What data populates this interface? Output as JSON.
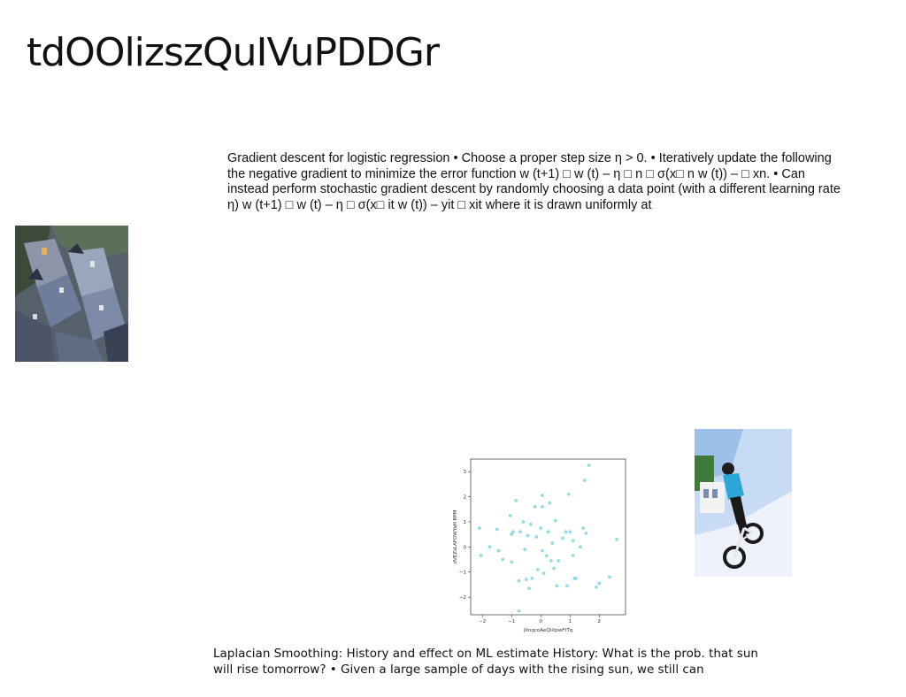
{
  "slide": {
    "title": "tdOOlizszQuIVuPDDGr",
    "body": "Gradient descent for logistic regression • Choose a proper step size η > 0. • Iteratively update the following the negative gradient to minimize the error function w (t+1) □ w (t) – η □ n □ σ(x□ n w (t)) – □ xn. • Can instead perform stochastic gradient descent by randomly choosing a data point (with a different learning rate η) w (t+1) □ w (t) – η □ σ(x□ it w (t)) – yit □ xit where it is drawn uniformly at",
    "footer": "Laplacian Smoothing: History and effect on ML estimate History: What is the prob. that sun will rise tomorrow? • Given a large sample of days with the rising sun, we still can"
  },
  "images": {
    "city": "city-photo",
    "bike": "bike-photo"
  },
  "chart_data": {
    "type": "scatter",
    "title": "",
    "xlabel": "jXnqcoAeQUipwFtTq",
    "ylabel": "dVEZsLAFOWYaH RPM",
    "xlim": [
      -2.4,
      2.9
    ],
    "ylim": [
      -2.7,
      3.5
    ],
    "xticks": [
      -2,
      -1,
      0,
      1,
      2
    ],
    "yticks": [
      -2,
      -1,
      0,
      1,
      2,
      3
    ],
    "grid": false,
    "color": "#7fd6e0",
    "points": [
      [
        -2.1,
        0.75
      ],
      [
        -2.05,
        -0.35
      ],
      [
        -1.75,
        0.0
      ],
      [
        -1.5,
        0.7
      ],
      [
        -1.45,
        -0.15
      ],
      [
        -1.3,
        -0.5
      ],
      [
        -1.05,
        1.25
      ],
      [
        -1.0,
        0.5
      ],
      [
        -1.0,
        -0.6
      ],
      [
        -0.95,
        0.6
      ],
      [
        -0.85,
        1.85
      ],
      [
        -0.75,
        -1.35
      ],
      [
        -0.75,
        -2.55
      ],
      [
        -0.7,
        0.6
      ],
      [
        -0.6,
        1.0
      ],
      [
        -0.55,
        -0.1
      ],
      [
        -0.5,
        -1.3
      ],
      [
        -0.45,
        0.45
      ],
      [
        -0.4,
        -1.65
      ],
      [
        -0.35,
        0.9
      ],
      [
        -0.3,
        -1.25
      ],
      [
        -0.2,
        1.6
      ],
      [
        -0.15,
        0.4
      ],
      [
        -0.1,
        -0.9
      ],
      [
        0.0,
        0.75
      ],
      [
        0.05,
        -0.15
      ],
      [
        0.05,
        1.6
      ],
      [
        0.05,
        2.05
      ],
      [
        0.1,
        -1.05
      ],
      [
        0.2,
        -0.35
      ],
      [
        0.25,
        0.6
      ],
      [
        0.3,
        1.75
      ],
      [
        0.35,
        -0.55
      ],
      [
        0.4,
        0.15
      ],
      [
        0.45,
        -0.85
      ],
      [
        0.5,
        1.05
      ],
      [
        0.55,
        -1.55
      ],
      [
        0.6,
        -0.55
      ],
      [
        0.75,
        0.35
      ],
      [
        0.85,
        0.6
      ],
      [
        0.9,
        -1.55
      ],
      [
        0.95,
        2.1
      ],
      [
        1.0,
        0.6
      ],
      [
        1.1,
        0.25
      ],
      [
        1.1,
        -0.35
      ],
      [
        1.15,
        -1.25
      ],
      [
        1.2,
        -1.25
      ],
      [
        1.35,
        0.0
      ],
      [
        1.45,
        0.75
      ],
      [
        1.5,
        2.65
      ],
      [
        1.55,
        0.55
      ],
      [
        1.65,
        3.25
      ],
      [
        1.9,
        -1.6
      ],
      [
        2.0,
        -1.45
      ],
      [
        2.35,
        -1.2
      ],
      [
        2.6,
        0.3
      ]
    ]
  }
}
